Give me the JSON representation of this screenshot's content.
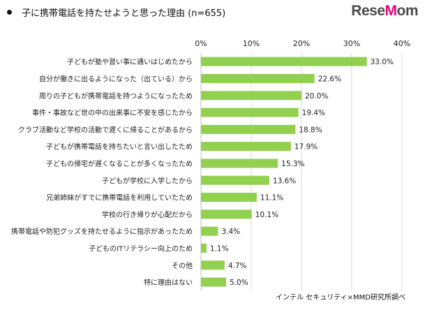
{
  "title": "子に携帯電話を持たせようと思った理由 (n=655)",
  "logo": {
    "text_main": "Rese",
    "text_accent": "M",
    "text_end": "om"
  },
  "source": "インテル セキュリティ×MMD研究所調べ",
  "colors": {
    "bar": "#92d050",
    "grid": "#d9d9d9",
    "axis": "#bfbfbf"
  },
  "chart_data": {
    "type": "bar",
    "orientation": "horizontal",
    "title": "子に携帯電話を持たせようと思った理由 (n=655)",
    "xlim": [
      0,
      40
    ],
    "ticks": [
      "0%",
      "10%",
      "20%",
      "30%",
      "40%"
    ],
    "tick_values": [
      0,
      10,
      20,
      30,
      40
    ],
    "grid": true,
    "categories": [
      "子どもが塾や習い事に通いはじめたから",
      "自分が働きに出るようになった（出ている）から",
      "周りの子どもが携帯電話を持つようになったため",
      "事件・事故など世の中の出来事に不安を感じたから",
      "クラブ活動など学校の活動で遅くに帰ることがあるから",
      "子どもが携帯電話を持ちたいと言い出したため",
      "子どもの帰宅が遅くなることが多くなったため",
      "子どもが学校に入学したから",
      "兄弟姉妹がすでに携帯電話を利用していたため",
      "学校の行き帰りが心配だから",
      "携帯電話や防犯グッズを持たせるように指示があったため",
      "子どものITリテラシー向上のため",
      "その他",
      "特に理由はない"
    ],
    "values": [
      33.0,
      22.6,
      20.0,
      19.4,
      18.8,
      17.9,
      15.3,
      13.6,
      11.1,
      10.1,
      3.4,
      1.1,
      4.7,
      5.0
    ],
    "value_labels": [
      "33.0%",
      "22.6%",
      "20.0%",
      "19.4%",
      "18.8%",
      "17.9%",
      "15.3%",
      "13.6%",
      "11.1%",
      "10.1%",
      "3.4%",
      "1.1%",
      "4.7%",
      "5.0%"
    ]
  }
}
